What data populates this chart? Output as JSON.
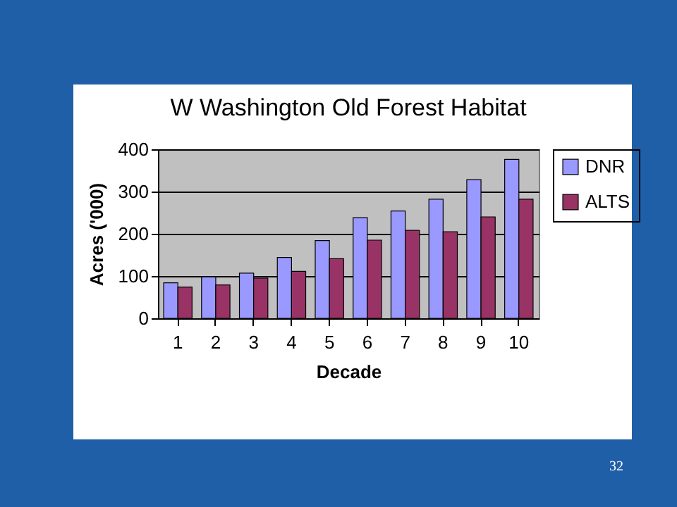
{
  "chart_data": {
    "type": "bar",
    "title": "W Washington Old Forest Habitat",
    "xlabel": "Decade",
    "ylabel": "Acres ('000)",
    "categories": [
      "1",
      "2",
      "3",
      "4",
      "5",
      "6",
      "7",
      "8",
      "9",
      "10"
    ],
    "series": [
      {
        "name": "DNR",
        "color": "#9999ff",
        "values": [
          84,
          98,
          107,
          144,
          184,
          238,
          254,
          282,
          328,
          376
        ]
      },
      {
        "name": "ALTS",
        "color": "#993366",
        "values": [
          74,
          79,
          95,
          111,
          141,
          185,
          208,
          205,
          240,
          282
        ]
      }
    ],
    "ylim": [
      0,
      400
    ],
    "yticks": [
      0,
      100,
      200,
      300,
      400
    ],
    "grid": "y",
    "legend": "right",
    "annotations": [
      "32"
    ]
  }
}
